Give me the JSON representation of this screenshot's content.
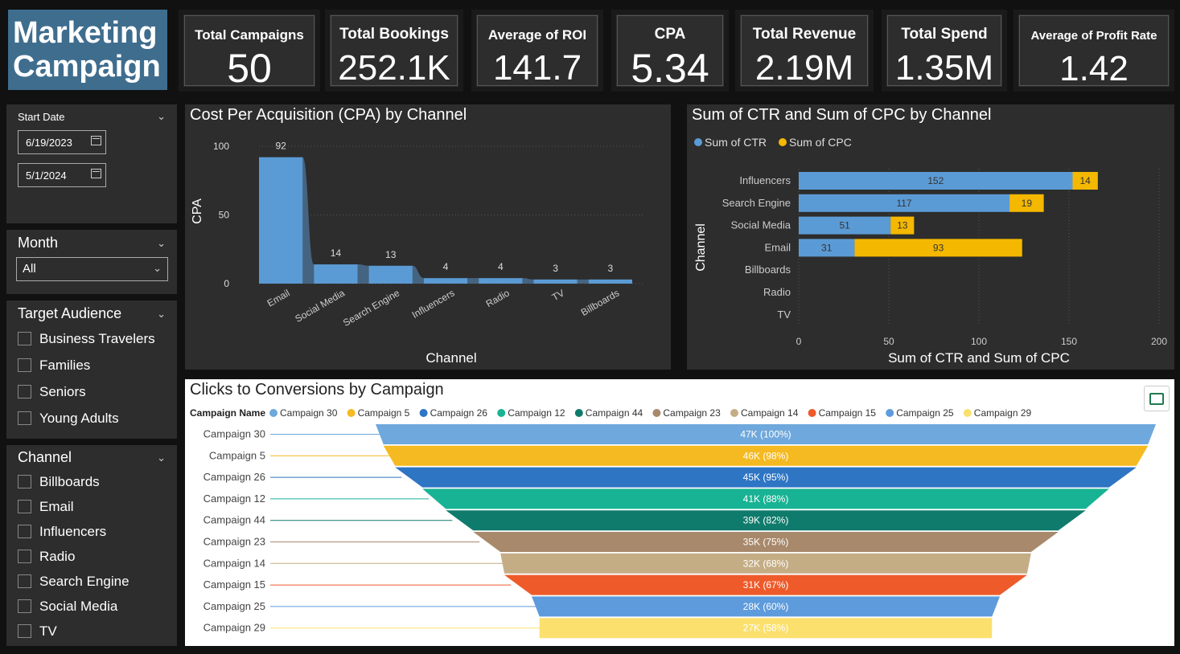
{
  "header": {
    "title_line1": "Marketing",
    "title_line2": "Campaign"
  },
  "kpis": [
    {
      "label": "Total Campaigns",
      "value": "50"
    },
    {
      "label": "Total Bookings",
      "value": "252.1K"
    },
    {
      "label": "Average of ROI",
      "value": "141.7"
    },
    {
      "label": "CPA",
      "value": "5.34"
    },
    {
      "label": "Total Revenue",
      "value": "2.19M"
    },
    {
      "label": "Total Spend",
      "value": "1.35M"
    },
    {
      "label": "Average of Profit Rate",
      "value": "1.42"
    }
  ],
  "filters": {
    "start_date": {
      "label": "Start Date",
      "from": "6/19/2023",
      "to": "5/1/2024"
    },
    "month": {
      "label": "Month",
      "selected": "All"
    },
    "audience": {
      "label": "Target Audience",
      "options": [
        "Business Travelers",
        "Families",
        "Seniors",
        "Young Adults"
      ]
    },
    "channel": {
      "label": "Channel",
      "options": [
        "Billboards",
        "Email",
        "Influencers",
        "Radio",
        "Search Engine",
        "Social Media",
        "TV"
      ]
    }
  },
  "colors": {
    "bar_blue": "#5b9bd5",
    "bar_gold": "#f5b800",
    "panel": "#2d2d2d"
  },
  "chart_data": [
    {
      "type": "bar",
      "title": "Cost Per Acquisition (CPA) by Channel",
      "categories": [
        "Email",
        "Social Media",
        "Search Engine",
        "Influencers",
        "Radio",
        "TV",
        "Billboards"
      ],
      "values": [
        92,
        14,
        13,
        4,
        4,
        3,
        3
      ],
      "xlabel": "Channel",
      "ylabel": "CPA",
      "yticks": [
        "0",
        "50",
        "100"
      ],
      "ylim": [
        0,
        100
      ]
    },
    {
      "type": "bar",
      "orientation": "horizontal",
      "stacked": true,
      "title": "Sum of CTR and Sum of CPC by Channel",
      "categories": [
        "Influencers",
        "Search Engine",
        "Social Media",
        "Email",
        "Billboards",
        "Radio",
        "TV"
      ],
      "series": [
        {
          "name": "Sum of CTR",
          "values": [
            152,
            117,
            51,
            31,
            0,
            0,
            0
          ]
        },
        {
          "name": "Sum of CPC",
          "values": [
            14,
            19,
            13,
            93,
            0,
            0,
            0
          ]
        }
      ],
      "xlabel": "Sum of CTR and Sum of CPC",
      "ylabel": "Channel",
      "xticks": [
        "0",
        "50",
        "100",
        "150",
        "200"
      ],
      "xlim": [
        0,
        200
      ]
    },
    {
      "type": "funnel",
      "title": "Clicks to Conversions by Campaign",
      "legend_title": "Campaign Name",
      "categories": [
        "Campaign 30",
        "Campaign 5",
        "Campaign 26",
        "Campaign 12",
        "Campaign 44",
        "Campaign 23",
        "Campaign 14",
        "Campaign 15",
        "Campaign 25",
        "Campaign 29"
      ],
      "labels": [
        "47K (100%)",
        "46K (98%)",
        "45K (95%)",
        "41K (88%)",
        "39K (82%)",
        "35K (75%)",
        "32K (68%)",
        "31K (67%)",
        "28K (60%)",
        "27K (58%)"
      ],
      "percent": [
        100,
        98,
        95,
        88,
        82,
        75,
        68,
        67,
        60,
        58
      ],
      "colors": [
        "#6fa8dc",
        "#f5b921",
        "#2e75c4",
        "#18b394",
        "#0f7b6c",
        "#a8896c",
        "#c4ad84",
        "#ee5a2a",
        "#5d9bdc",
        "#fbe06e"
      ]
    }
  ]
}
